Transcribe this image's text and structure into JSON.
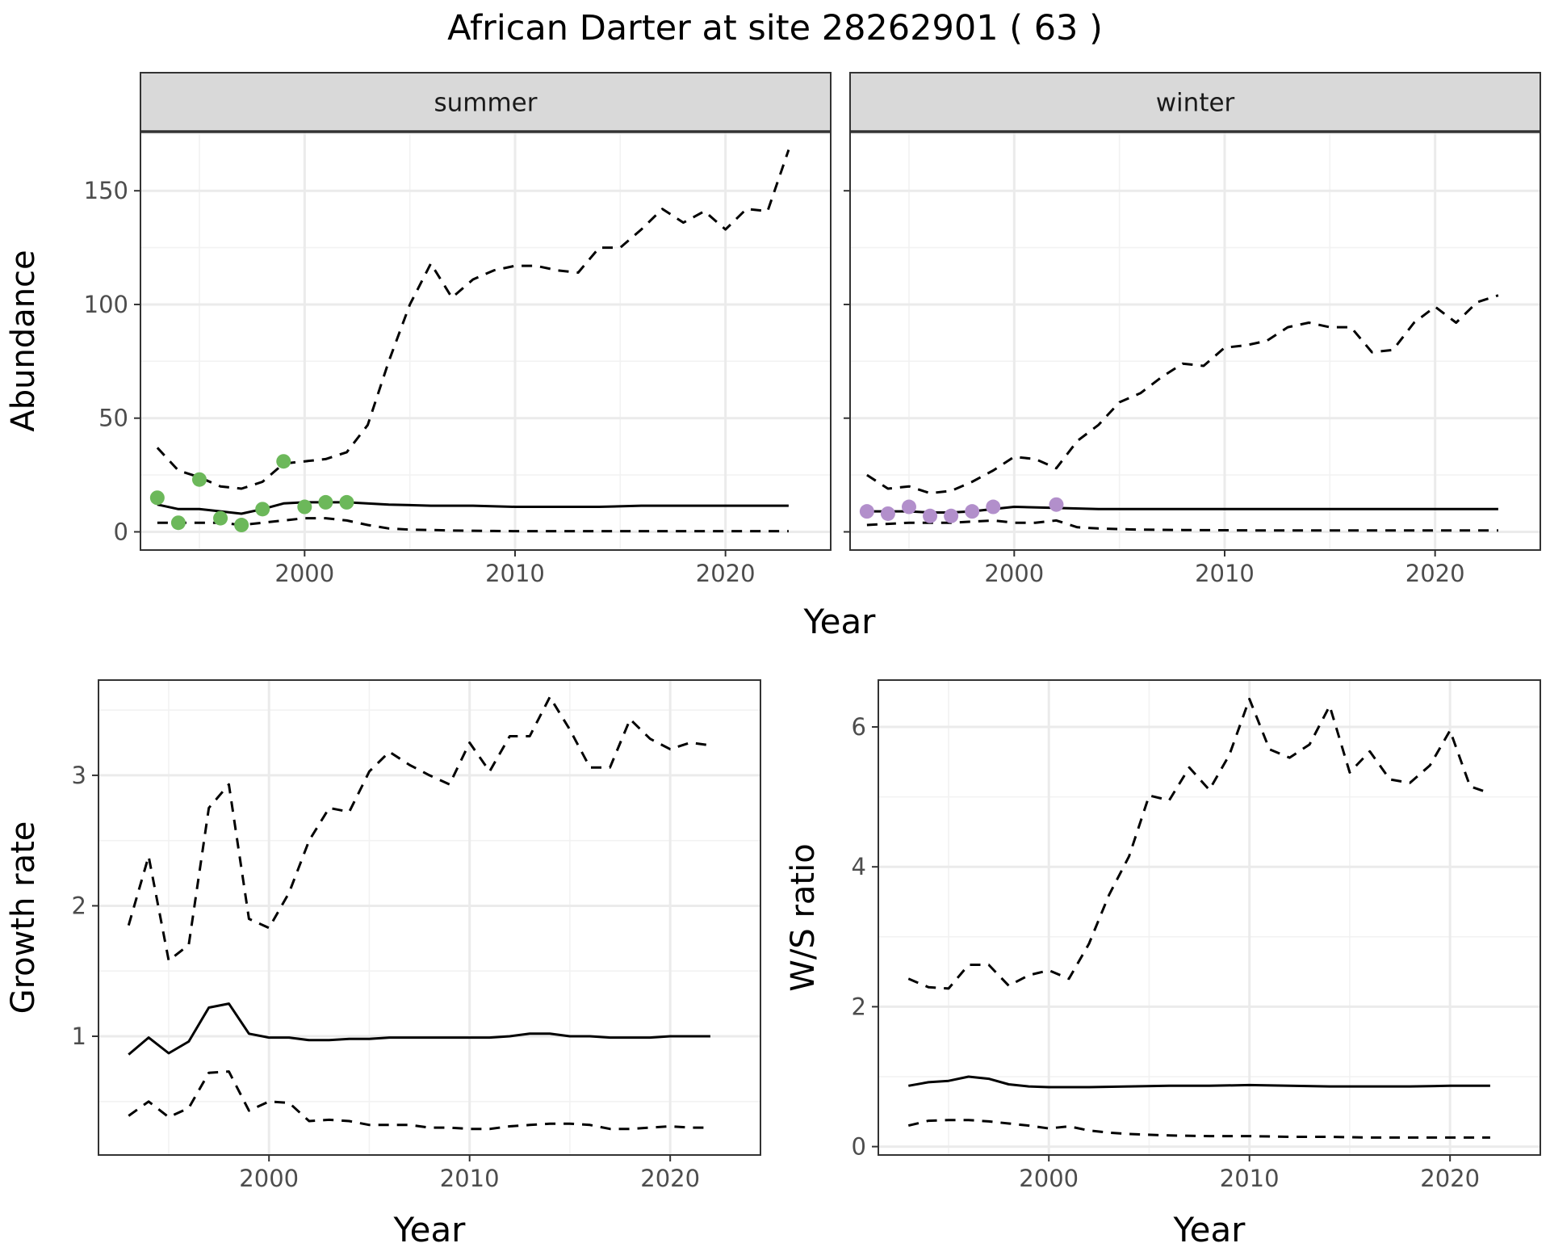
{
  "title": "African Darter at site 28262901 ( 63 )",
  "colors": {
    "summer_points": "#6cb85a",
    "winter_points": "#b28fcb",
    "strip_bg": "#d9d9d9",
    "grid": "#ebebeb"
  },
  "chart_data": [
    {
      "type": "line",
      "panel": "summer",
      "strip_label": "summer",
      "xlabel": "Year",
      "ylabel": "Abundance",
      "xlim": [
        1992.2,
        2025.0
      ],
      "ylim": [
        -8,
        176
      ],
      "x_ticks": [
        2000,
        2010,
        2020
      ],
      "y_ticks": [
        0,
        50,
        100,
        150
      ],
      "grid": true,
      "series": [
        {
          "role": "estimate",
          "style": "solid",
          "x": [
            1993,
            1994,
            1995,
            1996,
            1997,
            1998,
            1999,
            2000,
            2002,
            2004,
            2006,
            2008,
            2010,
            2012,
            2014,
            2016,
            2018,
            2020,
            2023
          ],
          "y": [
            12,
            10,
            10,
            9,
            8,
            10,
            12.5,
            13,
            13,
            12,
            11.5,
            11.5,
            11,
            11,
            11,
            11.5,
            11.5,
            11.5,
            11.5
          ]
        },
        {
          "role": "upper",
          "style": "dashed",
          "x": [
            1993,
            1994,
            1995,
            1996,
            1997,
            1998,
            1999,
            2000,
            2001,
            2002,
            2003,
            2004,
            2005,
            2006,
            2007,
            2008,
            2009,
            2010,
            2011,
            2012,
            2013,
            2014,
            2015,
            2016,
            2017,
            2018,
            2019,
            2020,
            2021,
            2022,
            2023
          ],
          "y": [
            37,
            27,
            24,
            20,
            19,
            22,
            30,
            31,
            32,
            35,
            47,
            75,
            100,
            118,
            103,
            111,
            115,
            117,
            117,
            115,
            114,
            125,
            125,
            133,
            142,
            136,
            141,
            133,
            142,
            141,
            168
          ]
        },
        {
          "role": "lower",
          "style": "dashed",
          "x": [
            1993,
            1994,
            1995,
            1996,
            1997,
            1998,
            1999,
            2000,
            2001,
            2002,
            2003,
            2004,
            2005,
            2006,
            2007,
            2008,
            2009,
            2010,
            2012,
            2014,
            2016,
            2018,
            2020,
            2023
          ],
          "y": [
            4,
            4,
            4,
            4,
            3,
            4,
            5,
            6,
            6,
            5,
            3,
            1.5,
            1,
            0.8,
            0.6,
            0.5,
            0.4,
            0.3,
            0.3,
            0.3,
            0.3,
            0.3,
            0.3,
            0.3
          ]
        }
      ],
      "points": {
        "x": [
          1993,
          1994,
          1995,
          1996,
          1997,
          1998,
          1999,
          2000,
          2001,
          2002
        ],
        "y": [
          15,
          4,
          23,
          6,
          3,
          10,
          31,
          11,
          13,
          13
        ]
      }
    },
    {
      "type": "line",
      "panel": "winter",
      "strip_label": "winter",
      "xlabel": "Year",
      "ylabel": "",
      "xlim": [
        1992.2,
        2025.0
      ],
      "ylim": [
        -8,
        176
      ],
      "x_ticks": [
        2000,
        2010,
        2020
      ],
      "y_ticks": [
        0,
        50,
        100,
        150
      ],
      "grid": true,
      "series": [
        {
          "role": "estimate",
          "style": "solid",
          "x": [
            1993,
            1995,
            1996,
            1997,
            1998,
            1999,
            2000,
            2002,
            2004,
            2006,
            2008,
            2010,
            2012,
            2014,
            2016,
            2018,
            2020,
            2023
          ],
          "y": [
            9,
            9,
            8.5,
            8.5,
            9,
            10,
            11,
            10.5,
            10,
            10,
            10,
            10,
            10,
            10,
            10,
            10,
            10,
            10
          ]
        },
        {
          "role": "upper",
          "style": "dashed",
          "x": [
            1993,
            1994,
            1995,
            1996,
            1997,
            1998,
            1999,
            2000,
            2001,
            2002,
            2003,
            2004,
            2005,
            2006,
            2007,
            2008,
            2009,
            2010,
            2011,
            2012,
            2013,
            2014,
            2015,
            2016,
            2017,
            2018,
            2019,
            2020,
            2021,
            2022,
            2023
          ],
          "y": [
            25,
            19,
            20,
            17,
            18,
            22,
            27,
            33,
            32,
            28,
            40,
            47,
            57,
            61,
            68,
            74,
            73,
            81,
            82,
            84,
            90,
            92,
            90,
            90,
            79,
            80,
            92,
            99,
            92,
            101,
            104
          ]
        },
        {
          "role": "lower",
          "style": "dashed",
          "x": [
            1993,
            1994,
            1995,
            1996,
            1997,
            1998,
            1999,
            2000,
            2001,
            2002,
            2003,
            2004,
            2005,
            2006,
            2008,
            2010,
            2012,
            2014,
            2016,
            2018,
            2020,
            2023
          ],
          "y": [
            3,
            3.5,
            4,
            4,
            4,
            4.5,
            5,
            4,
            4,
            5,
            2,
            1.5,
            1.2,
            1,
            0.8,
            0.7,
            0.6,
            0.6,
            0.6,
            0.6,
            0.6,
            0.6
          ]
        }
      ],
      "points": {
        "x": [
          1993,
          1994,
          1995,
          1996,
          1997,
          1998,
          1999,
          2002
        ],
        "y": [
          9,
          8,
          11,
          7,
          7,
          9,
          11,
          12
        ]
      }
    },
    {
      "type": "line",
      "panel": "growth",
      "xlabel": "Year",
      "ylabel": "Growth rate",
      "xlim": [
        1991.5,
        2024.5
      ],
      "ylim": [
        0.09,
        3.73
      ],
      "x_ticks": [
        2000,
        2010,
        2020
      ],
      "y_ticks": [
        1,
        2,
        3
      ],
      "grid": true,
      "series": [
        {
          "role": "estimate",
          "style": "solid",
          "x": [
            1993,
            1994,
            1995,
            1996,
            1997,
            1998,
            1999,
            2000,
            2001,
            2002,
            2003,
            2004,
            2005,
            2006,
            2007,
            2008,
            2009,
            2010,
            2011,
            2012,
            2013,
            2014,
            2015,
            2016,
            2017,
            2018,
            2019,
            2020,
            2021,
            2022
          ],
          "y": [
            0.86,
            0.99,
            0.87,
            0.96,
            1.22,
            1.25,
            1.02,
            0.99,
            0.99,
            0.97,
            0.97,
            0.98,
            0.98,
            0.99,
            0.99,
            0.99,
            0.99,
            0.99,
            0.99,
            1.0,
            1.02,
            1.02,
            1.0,
            1.0,
            0.99,
            0.99,
            0.99,
            1.0,
            1.0,
            1.0
          ]
        },
        {
          "role": "upper",
          "style": "dashed",
          "x": [
            1993,
            1994,
            1995,
            1996,
            1997,
            1998,
            1999,
            2000,
            2001,
            2002,
            2003,
            2004,
            2005,
            2006,
            2007,
            2008,
            2009,
            2010,
            2011,
            2012,
            2013,
            2014,
            2015,
            2016,
            2017,
            2018,
            2019,
            2020,
            2021,
            2022
          ],
          "y": [
            1.85,
            2.38,
            1.58,
            1.7,
            2.75,
            2.93,
            1.9,
            1.83,
            2.1,
            2.5,
            2.75,
            2.72,
            3.03,
            3.18,
            3.08,
            3.0,
            2.93,
            3.25,
            3.03,
            3.3,
            3.3,
            3.6,
            3.35,
            3.06,
            3.06,
            3.43,
            3.28,
            3.2,
            3.25,
            3.23
          ]
        },
        {
          "role": "lower",
          "style": "dashed",
          "x": [
            1993,
            1994,
            1995,
            1996,
            1997,
            1998,
            1999,
            2000,
            2001,
            2002,
            2003,
            2004,
            2005,
            2006,
            2007,
            2008,
            2009,
            2010,
            2011,
            2012,
            2013,
            2014,
            2015,
            2016,
            2017,
            2018,
            2019,
            2020,
            2021,
            2022
          ],
          "y": [
            0.39,
            0.5,
            0.38,
            0.45,
            0.72,
            0.73,
            0.43,
            0.5,
            0.49,
            0.35,
            0.36,
            0.35,
            0.32,
            0.32,
            0.32,
            0.3,
            0.3,
            0.29,
            0.29,
            0.31,
            0.32,
            0.33,
            0.33,
            0.32,
            0.29,
            0.29,
            0.3,
            0.31,
            0.3,
            0.3
          ]
        }
      ]
    },
    {
      "type": "line",
      "panel": "ratio",
      "xlabel": "Year",
      "ylabel": "W/S ratio",
      "xlim": [
        1991.5,
        2024.5
      ],
      "ylim": [
        -0.12,
        6.67
      ],
      "x_ticks": [
        2000,
        2010,
        2020
      ],
      "y_ticks": [
        0,
        2,
        4,
        6
      ],
      "grid": true,
      "series": [
        {
          "role": "estimate",
          "style": "solid",
          "x": [
            1993,
            1994,
            1995,
            1996,
            1997,
            1998,
            1999,
            2000,
            2002,
            2004,
            2006,
            2008,
            2010,
            2012,
            2014,
            2016,
            2018,
            2020,
            2022
          ],
          "y": [
            0.87,
            0.92,
            0.94,
            1.0,
            0.97,
            0.89,
            0.86,
            0.85,
            0.85,
            0.86,
            0.87,
            0.87,
            0.88,
            0.87,
            0.86,
            0.86,
            0.86,
            0.87,
            0.87
          ]
        },
        {
          "role": "upper",
          "style": "dashed",
          "x": [
            1993,
            1994,
            1995,
            1996,
            1997,
            1998,
            1999,
            2000,
            2001,
            2002,
            2003,
            2004,
            2005,
            2006,
            2007,
            2008,
            2009,
            2010,
            2011,
            2012,
            2013,
            2014,
            2015,
            2016,
            2017,
            2018,
            2019,
            2020,
            2021,
            2022
          ],
          "y": [
            2.4,
            2.28,
            2.26,
            2.6,
            2.6,
            2.3,
            2.45,
            2.52,
            2.4,
            2.9,
            3.6,
            4.15,
            5.02,
            4.95,
            5.42,
            5.1,
            5.6,
            6.4,
            5.68,
            5.56,
            5.75,
            6.3,
            5.35,
            5.65,
            5.25,
            5.2,
            5.45,
            5.95,
            5.15,
            5.05
          ]
        },
        {
          "role": "lower",
          "style": "dashed",
          "x": [
            1993,
            1994,
            1995,
            1996,
            1997,
            1998,
            1999,
            2000,
            2001,
            2002,
            2003,
            2004,
            2006,
            2008,
            2010,
            2012,
            2014,
            2016,
            2018,
            2020,
            2022
          ],
          "y": [
            0.3,
            0.37,
            0.38,
            0.38,
            0.36,
            0.33,
            0.3,
            0.26,
            0.29,
            0.23,
            0.2,
            0.18,
            0.16,
            0.15,
            0.15,
            0.14,
            0.14,
            0.13,
            0.13,
            0.13,
            0.13
          ]
        }
      ]
    }
  ]
}
